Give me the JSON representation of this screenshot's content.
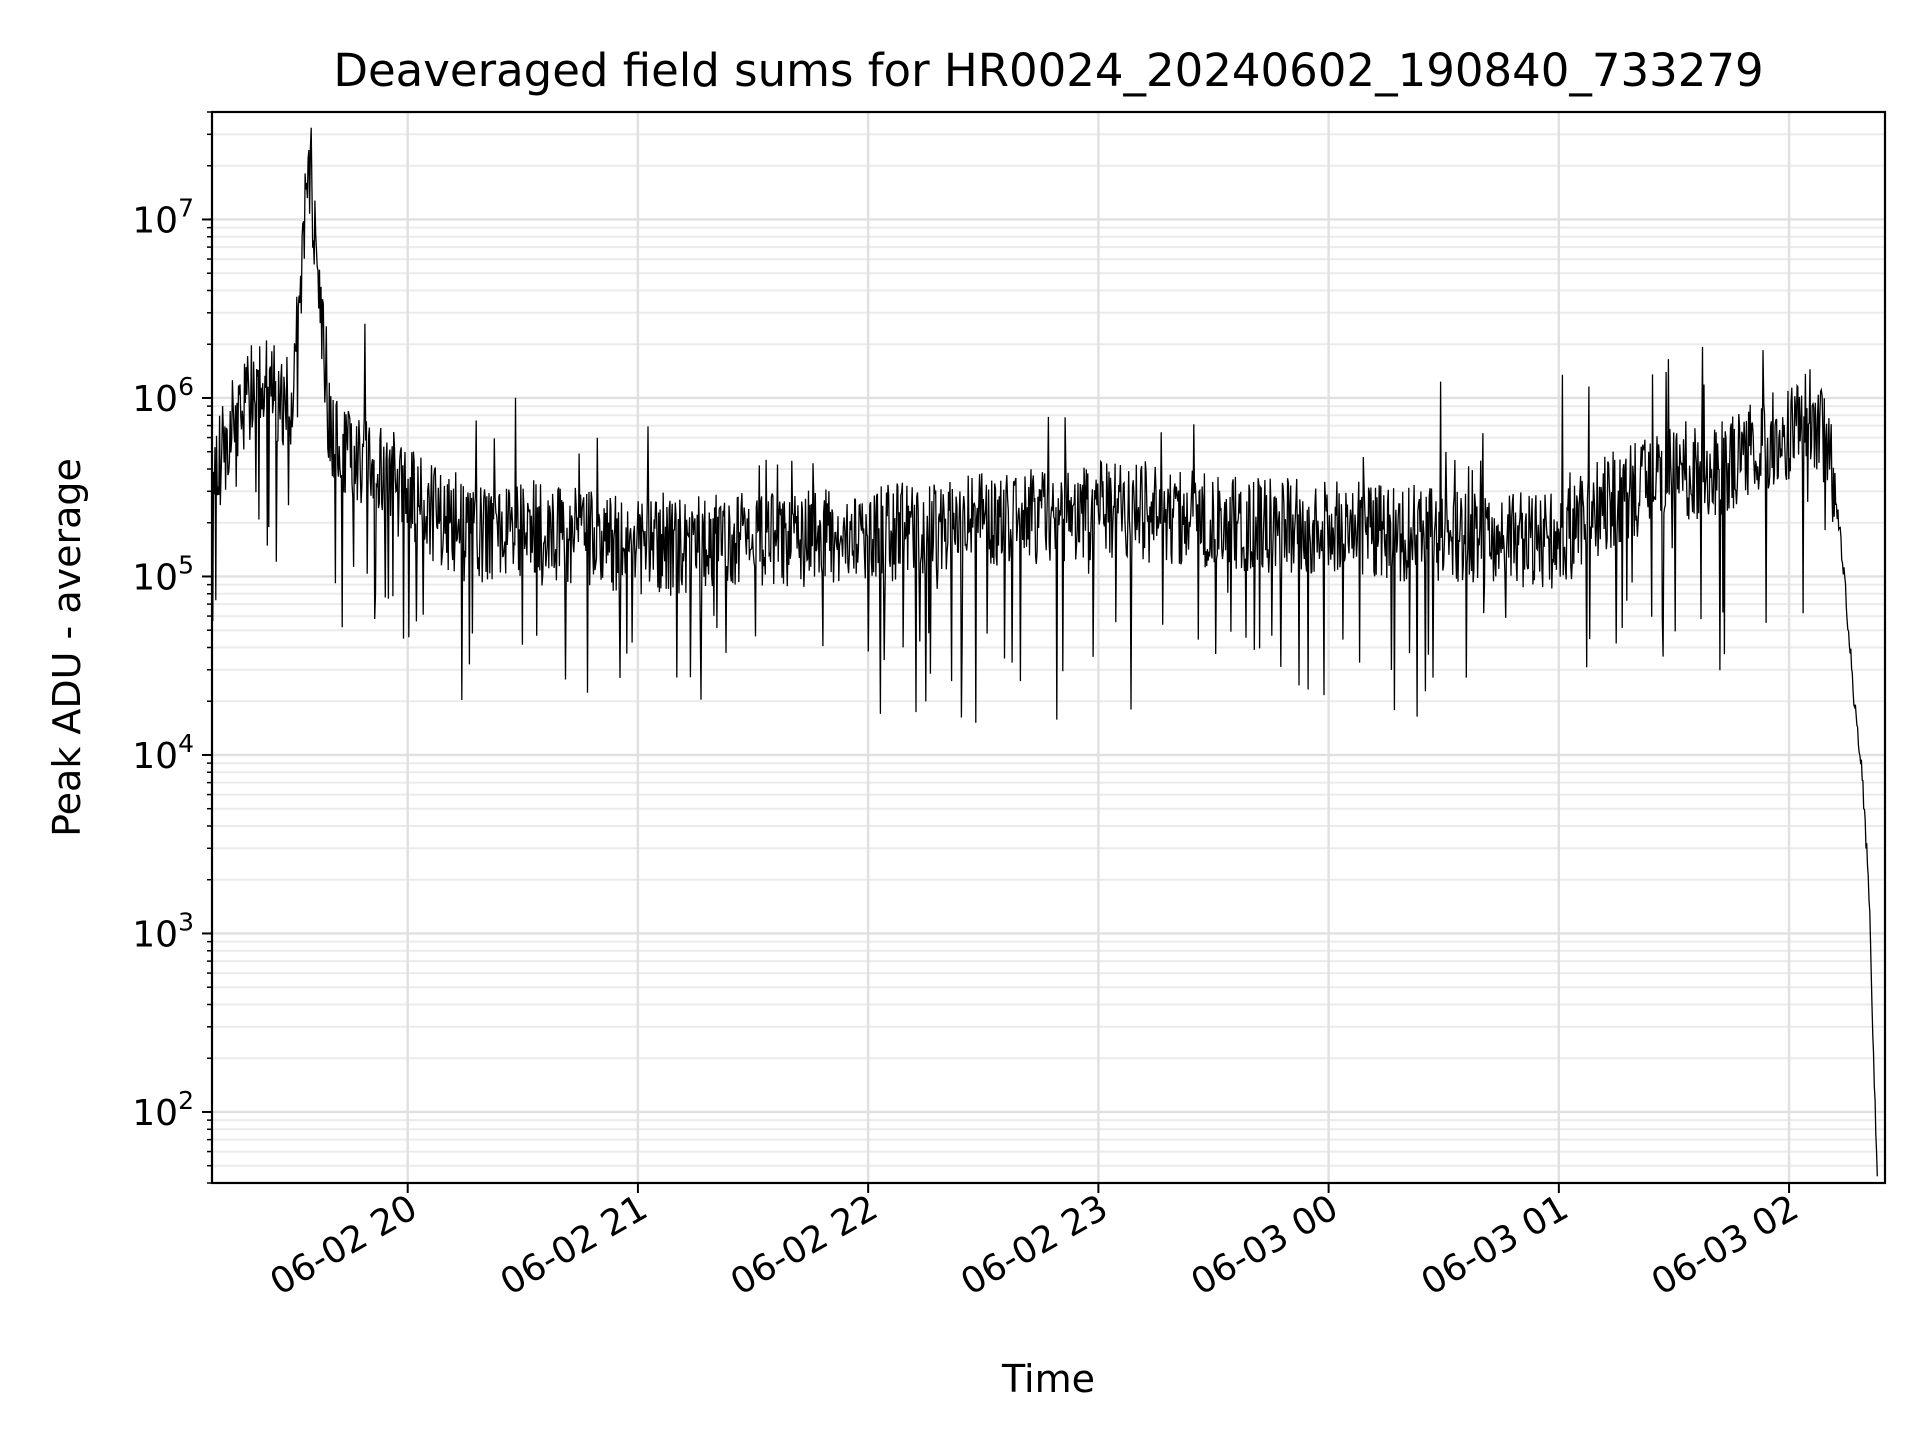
{
  "chart_data": {
    "type": "line",
    "title": "Deaveraged field sums for HR0024_20240602_190840_733279",
    "xlabel": "Time",
    "ylabel": "Peak ADU - average",
    "x_range": [
      "2024-06-02 19:09",
      "2024-06-03 02:25"
    ],
    "x_ticks": [
      "06-02 20",
      "06-02 21",
      "06-02 22",
      "06-02 23",
      "06-03 00",
      "06-03 01",
      "06-03 02"
    ],
    "y_scale": "log",
    "y_range": [
      40,
      40000000
    ],
    "y_ticks": [
      {
        "value": 100,
        "base": "10",
        "exp": "2"
      },
      {
        "value": 1000,
        "base": "10",
        "exp": "3"
      },
      {
        "value": 10000,
        "base": "10",
        "exp": "4"
      },
      {
        "value": 100000,
        "base": "10",
        "exp": "5"
      },
      {
        "value": 1000000,
        "base": "10",
        "exp": "6"
      },
      {
        "value": 10000000,
        "base": "10",
        "exp": "7"
      }
    ],
    "grid": true,
    "line_color": "#000000",
    "series": [
      {
        "x": [
          "2024-06-02 19:09",
          "2024-06-02 19:15",
          "2024-06-02 19:20",
          "2024-06-02 19:25",
          "2024-06-02 19:30",
          "2024-06-02 19:34",
          "2024-06-02 19:40",
          "2024-06-02 19:45",
          "2024-06-02 19:50",
          "2024-06-02 20:00",
          "2024-06-02 20:15",
          "2024-06-02 20:30",
          "2024-06-02 20:45",
          "2024-06-02 21:00",
          "2024-06-02 21:30",
          "2024-06-02 22:00",
          "2024-06-02 22:30",
          "2024-06-02 23:00",
          "2024-06-02 23:30",
          "2024-06-03 00:00",
          "2024-06-03 00:30",
          "2024-06-03 01:00",
          "2024-06-03 01:15",
          "2024-06-03 01:30",
          "2024-06-03 01:45",
          "2024-06-03 02:00",
          "2024-06-03 02:05",
          "2024-06-03 02:10",
          "2024-06-03 02:13",
          "2024-06-03 02:15",
          "2024-06-03 02:17",
          "2024-06-03 02:19",
          "2024-06-03 02:21",
          "2024-06-03 02:22",
          "2024-06-03 02:23"
        ],
        "y": [
          350000,
          800000,
          1300000,
          1200000,
          900000,
          22000000,
          600000,
          500000,
          450000,
          300000,
          180000,
          200000,
          180000,
          150000,
          170000,
          180000,
          220000,
          250000,
          220000,
          200000,
          180000,
          170000,
          300000,
          400000,
          450000,
          700000,
          900000,
          600000,
          200000,
          70000,
          20000,
          8000,
          1500,
          200,
          45
        ]
      }
    ]
  }
}
